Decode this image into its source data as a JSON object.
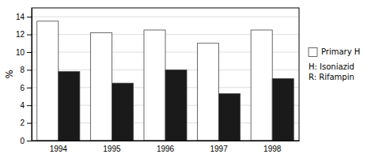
{
  "chart_data": {
    "type": "bar",
    "y_label": "%",
    "categories": [
      "1994",
      "1995",
      "1996",
      "1997",
      "1998"
    ],
    "series": [
      {
        "name": "Primary H",
        "color": "#ffffff",
        "values": [
          13.5,
          12.2,
          12.5,
          11.0,
          12.5
        ]
      },
      {
        "color": "#1a1a1a",
        "values": [
          7.8,
          6.5,
          8.0,
          5.3,
          7.0
        ]
      }
    ],
    "annotations": [
      "H: Isoniazid\nR: Rifampin"
    ],
    "ylim": [
      0,
      15
    ],
    "yticks": [
      0,
      2,
      4,
      6,
      8,
      10,
      12,
      14
    ],
    "grid": true,
    "legend": "right"
  }
}
